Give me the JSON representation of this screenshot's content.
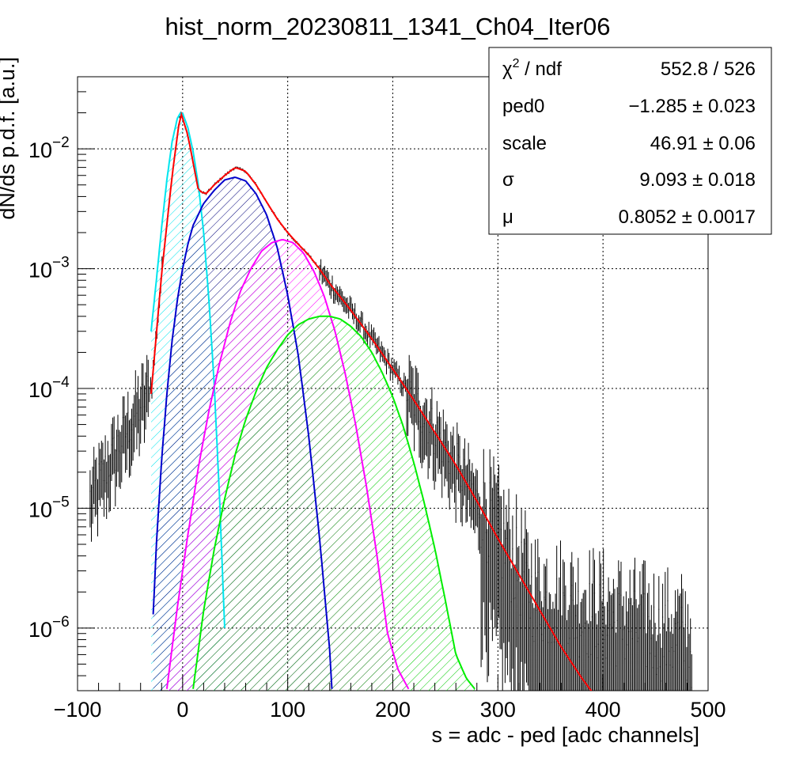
{
  "chart_data": {
    "type": "line",
    "title": "hist_norm_20230811_1341_Ch04_Iter06",
    "xlabel": "s = adc - ped [adc channels]",
    "ylabel": "dN/ds p.d.f. [a.u.]",
    "xlim": [
      -100,
      500
    ],
    "ylim": [
      3e-07,
      0.04
    ],
    "yscale": "log",
    "grid": true,
    "x_ticks": [
      "−100",
      "0",
      "100",
      "200",
      "300",
      "400",
      "500"
    ],
    "x_tick_values": [
      -100,
      0,
      100,
      200,
      300,
      400,
      500
    ],
    "y_ticks": [
      {
        "value": 1e-06,
        "base": "10",
        "exp": "−6"
      },
      {
        "value": 1e-05,
        "base": "10",
        "exp": "−5"
      },
      {
        "value": 0.0001,
        "base": "10",
        "exp": "−4"
      },
      {
        "value": 0.001,
        "base": "10",
        "exp": "−3"
      },
      {
        "value": 0.01,
        "base": "10",
        "exp": "−2"
      }
    ],
    "series": [
      {
        "color": "#ff0000",
        "x": [
          -30,
          -20,
          -10,
          -2,
          5,
          15,
          22,
          30,
          40,
          50,
          60,
          70,
          80,
          90,
          100,
          110,
          120,
          130,
          140,
          160,
          180,
          200,
          220,
          240,
          260,
          280,
          300,
          320,
          340,
          360,
          380,
          390
        ],
        "y": [
          9e-05,
          0.0009,
          0.006,
          0.0205,
          0.013,
          0.0045,
          0.0042,
          0.005,
          0.006,
          0.007,
          0.0065,
          0.005,
          0.0036,
          0.0026,
          0.002,
          0.0016,
          0.0013,
          0.001,
          0.00075,
          0.00045,
          0.00026,
          0.000145,
          8e-05,
          4.3e-05,
          2.3e-05,
          1.15e-05,
          5.6e-06,
          2.8e-06,
          1.4e-06,
          7e-07,
          3.8e-07,
          2.9e-07
        ]
      },
      {
        "color": "#00e5ee",
        "x": [
          -30,
          -25,
          -20,
          -15,
          -10,
          -5,
          -2,
          0,
          5,
          10,
          15,
          20,
          25,
          30,
          35,
          40
        ],
        "y": [
          0.0003,
          0.0008,
          0.0022,
          0.0055,
          0.0115,
          0.018,
          0.02,
          0.0198,
          0.015,
          0.0095,
          0.005,
          0.002,
          0.00055,
          0.00011,
          1.3e-05,
          1e-06
        ]
      },
      {
        "color": "#0000cc",
        "x": [
          -28,
          -25,
          -20,
          -15,
          -10,
          -5,
          0,
          5,
          10,
          20,
          30,
          40,
          50,
          60,
          70,
          80,
          90,
          100,
          110,
          120,
          130,
          140,
          142
        ],
        "y": [
          1.3e-06,
          5e-06,
          2.5e-05,
          9e-05,
          0.00025,
          0.00055,
          0.001,
          0.0016,
          0.0023,
          0.0035,
          0.0045,
          0.0055,
          0.0058,
          0.0054,
          0.0042,
          0.0028,
          0.0015,
          0.0006,
          0.00019,
          4e-05,
          6e-06,
          6.5e-07,
          3.1e-07
        ]
      },
      {
        "color": "#ff00ff",
        "x": [
          -15,
          -5,
          5,
          15,
          25,
          35,
          45,
          55,
          65,
          75,
          85,
          95,
          105,
          115,
          125,
          135,
          145,
          155,
          165,
          175,
          185,
          195,
          205,
          215
        ],
        "y": [
          3.1e-07,
          1.5e-06,
          6e-06,
          2.2e-05,
          6.5e-05,
          0.00016,
          0.00035,
          0.00065,
          0.001,
          0.0014,
          0.00165,
          0.00175,
          0.00165,
          0.00135,
          0.00095,
          0.00058,
          0.0003,
          0.00013,
          4.8e-05,
          1.5e-05,
          4e-06,
          9e-07,
          4.5e-07,
          3.1e-07
        ]
      },
      {
        "color": "#00ee00",
        "x": [
          10,
          20,
          30,
          40,
          50,
          60,
          70,
          80,
          90,
          100,
          110,
          120,
          130,
          140,
          150,
          160,
          170,
          180,
          190,
          200,
          210,
          220,
          230,
          240,
          250,
          260,
          270,
          278
        ],
        "y": [
          3.1e-07,
          1.4e-06,
          4.5e-06,
          1.2e-05,
          2.8e-05,
          5.5e-05,
          9.5e-05,
          0.00015,
          0.00021,
          0.00028,
          0.00034,
          0.00038,
          0.0004,
          0.0004,
          0.00038,
          0.00033,
          0.00027,
          0.0002,
          0.000135,
          8.5e-05,
          4.8e-05,
          2.4e-05,
          1.1e-05,
          4.6e-06,
          1.7e-06,
          6e-07,
          3.8e-07,
          3.1e-07
        ]
      }
    ],
    "stats_box": [
      {
        "name_html": "χ",
        "sup": "2",
        "name_rest": " / ndf",
        "value": "552.8 / 526"
      },
      {
        "name_html": "ped0",
        "sup": "",
        "name_rest": "",
        "value": "−1.285 ± 0.023"
      },
      {
        "name_html": "scale",
        "sup": "",
        "name_rest": "",
        "value": "46.91 ± 0.06"
      },
      {
        "name_html": "σ",
        "sup": "",
        "name_rest": "",
        "value": "9.093 ± 0.018"
      },
      {
        "name_html": "μ",
        "sup": "",
        "name_rest": "",
        "value": "0.8052 ± 0.0017"
      }
    ]
  }
}
